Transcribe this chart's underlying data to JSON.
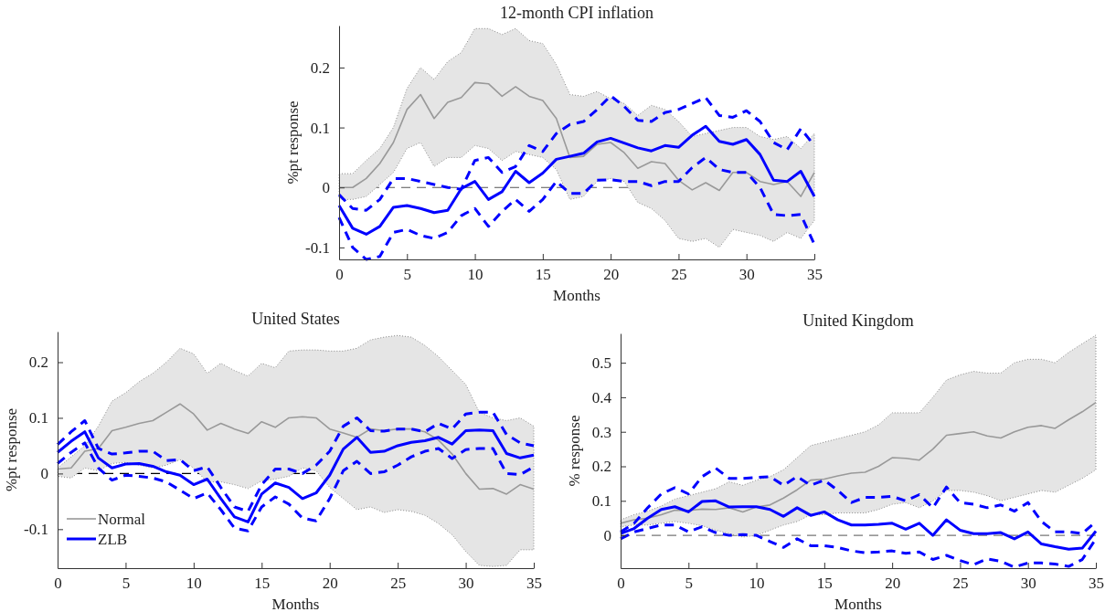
{
  "chart_data": [
    {
      "type": "line",
      "title": "12-month CPI inflation",
      "xlabel": "Months",
      "ylabel": "%pt response",
      "x": [
        0,
        1,
        2,
        3,
        4,
        5,
        6,
        7,
        8,
        9,
        10,
        11,
        12,
        13,
        14,
        15,
        16,
        17,
        18,
        19,
        20,
        21,
        22,
        23,
        24,
        25,
        26,
        27,
        28,
        29,
        30,
        31,
        32,
        33,
        34,
        35
      ],
      "xlim": [
        0,
        35
      ],
      "xticks": [
        0,
        5,
        10,
        15,
        20,
        25,
        30,
        35
      ],
      "ylim": [
        -0.12,
        0.27
      ],
      "yticks": [
        -0.1,
        0,
        0.1,
        0.2
      ],
      "series": [
        {
          "color": "#999999",
          "values": [
            0,
            0,
            0.015,
            0.04,
            0.075,
            0.13,
            0.155,
            0.115,
            0.142,
            0.15,
            0.175,
            0.173,
            0.152,
            0.168,
            0.152,
            0.145,
            0.115,
            0.05,
            0.052,
            0.072,
            0.075,
            0.058,
            0.032,
            0.043,
            0.04,
            0.012,
            -0.004,
            0.008,
            -0.005,
            0.025,
            0.025,
            0.01,
            0.005,
            0.01,
            -0.015,
            0.025
          ],
          "lower": [
            -0.02,
            -0.02,
            -0.015,
            0.005,
            0.025,
            0.065,
            0.075,
            0.035,
            0.05,
            0.05,
            0.07,
            0.065,
            0.045,
            0.06,
            0.055,
            0.05,
            0.03,
            -0.02,
            -0.015,
            0.01,
            0.015,
            0.01,
            -0.025,
            -0.035,
            -0.055,
            -0.085,
            -0.09,
            -0.085,
            -0.1,
            -0.07,
            -0.075,
            -0.08,
            -0.09,
            -0.075,
            -0.085,
            -0.055
          ],
          "upper": [
            0.023,
            0.023,
            0.045,
            0.065,
            0.1,
            0.165,
            0.2,
            0.18,
            0.21,
            0.225,
            0.265,
            0.265,
            0.255,
            0.265,
            0.245,
            0.24,
            0.205,
            0.155,
            0.152,
            0.16,
            0.148,
            0.14,
            0.12,
            0.137,
            0.13,
            0.11,
            0.085,
            0.09,
            0.095,
            0.1,
            0.1,
            0.085,
            0.08,
            0.085,
            0.065,
            0.09
          ]
        },
        {
          "color": "#0000ff",
          "values": [
            -0.03,
            -0.068,
            -0.078,
            -0.065,
            -0.033,
            -0.03,
            -0.035,
            -0.042,
            -0.038,
            -0.002,
            0.01,
            -0.02,
            -0.007,
            0.027,
            0.008,
            0.024,
            0.047,
            0.052,
            0.057,
            0.076,
            0.082,
            0.074,
            0.066,
            0.061,
            0.07,
            0.067,
            0.087,
            0.102,
            0.077,
            0.072,
            0.08,
            0.055,
            0.012,
            0.01,
            0.027,
            -0.015
          ]
        },
        {
          "color": "#0000ff",
          "line_style": "dashed",
          "values": [
            -0.012,
            -0.035,
            -0.038,
            -0.02,
            0.015,
            0.015,
            0.01,
            0.005,
            0,
            -0.003,
            0.045,
            0.05,
            0.025,
            0.035,
            0.07,
            0.06,
            0.09,
            0.105,
            0.11,
            0.13,
            0.153,
            0.135,
            0.112,
            0.11,
            0.125,
            0.13,
            0.14,
            0.15,
            0.12,
            0.117,
            0.128,
            0.11,
            0.075,
            0.063,
            0.098,
            0.07
          ]
        },
        {
          "color": "#0000ff",
          "line_style": "dashed",
          "values": [
            -0.05,
            -0.1,
            -0.12,
            -0.115,
            -0.075,
            -0.07,
            -0.08,
            -0.085,
            -0.075,
            -0.047,
            -0.035,
            -0.065,
            -0.04,
            -0.02,
            -0.04,
            -0.02,
            0.01,
            -0.01,
            -0.01,
            0.012,
            0.013,
            0.01,
            0.01,
            0.003,
            0.01,
            0.01,
            0.033,
            0.05,
            0.03,
            0.025,
            0.025,
            0,
            -0.045,
            -0.047,
            -0.045,
            -0.095
          ]
        }
      ],
      "ref_lines": [
        {
          "axis": "y",
          "value": 0,
          "color": "#555555",
          "line_style": "dashed"
        }
      ]
    },
    {
      "type": "line",
      "title": "United States",
      "xlabel": "Months",
      "ylabel": "%pt response",
      "x": [
        0,
        1,
        2,
        3,
        4,
        5,
        6,
        7,
        8,
        9,
        10,
        11,
        12,
        13,
        14,
        15,
        16,
        17,
        18,
        19,
        20,
        21,
        22,
        23,
        24,
        25,
        26,
        27,
        28,
        29,
        30,
        31,
        32,
        33,
        34,
        35
      ],
      "xlim": [
        0,
        35
      ],
      "xticks": [
        0,
        5,
        10,
        15,
        20,
        25,
        30,
        35
      ],
      "ylim": [
        -0.17,
        0.255
      ],
      "yticks": [
        -0.1,
        0,
        0.1,
        0.2
      ],
      "legend": "bottom left",
      "series": [
        {
          "name": "Normal",
          "color": "#999999",
          "values": [
            0.008,
            0.01,
            0.04,
            0.045,
            0.077,
            0.083,
            0.09,
            0.095,
            0.11,
            0.125,
            0.107,
            0.078,
            0.09,
            0.08,
            0.072,
            0.093,
            0.083,
            0.1,
            0.102,
            0.1,
            0.08,
            0.073,
            0.065,
            0.08,
            0.077,
            0.08,
            0.08,
            0.075,
            0.06,
            0.035,
            0,
            -0.028,
            -0.027,
            -0.037,
            -0.02,
            -0.028
          ],
          "lower": [
            -0.005,
            -0.008,
            0.01,
            0.005,
            0.018,
            0.02,
            0.015,
            0.01,
            0.015,
            0.025,
            0.01,
            -0.015,
            -0.015,
            -0.02,
            -0.027,
            -0.013,
            -0.01,
            -0.005,
            0.01,
            0.005,
            -0.025,
            -0.045,
            -0.065,
            -0.06,
            -0.07,
            -0.065,
            -0.068,
            -0.075,
            -0.09,
            -0.11,
            -0.14,
            -0.165,
            -0.167,
            -0.165,
            -0.137,
            -0.137
          ],
          "upper": [
            0.01,
            0.03,
            0.05,
            0.085,
            0.13,
            0.145,
            0.165,
            0.18,
            0.2,
            0.225,
            0.215,
            0.18,
            0.198,
            0.185,
            0.175,
            0.198,
            0.19,
            0.22,
            0.222,
            0.222,
            0.22,
            0.22,
            0.225,
            0.24,
            0.245,
            0.248,
            0.245,
            0.23,
            0.21,
            0.185,
            0.16,
            0.11,
            0.1,
            0.095,
            0.1,
            0.085
          ]
        },
        {
          "name": "ZLB",
          "color": "#0000ff",
          "values": [
            0.038,
            0.058,
            0.075,
            0.028,
            0.01,
            0.017,
            0.018,
            0.013,
            0.003,
            -0.003,
            -0.02,
            -0.01,
            -0.045,
            -0.078,
            -0.087,
            -0.037,
            -0.017,
            -0.025,
            -0.045,
            -0.035,
            -0.003,
            0.044,
            0.065,
            0.038,
            0.04,
            0.05,
            0.056,
            0.059,
            0.065,
            0.053,
            0.077,
            0.078,
            0.077,
            0.036,
            0.028,
            0.033
          ]
        },
        {
          "color": "#0000ff",
          "line_style": "dashed",
          "values": [
            0.052,
            0.075,
            0.095,
            0.045,
            0.035,
            0.037,
            0.04,
            0.04,
            0.023,
            0.025,
            0.005,
            0.012,
            -0.025,
            -0.06,
            -0.068,
            -0.02,
            0.008,
            0.008,
            0,
            0.015,
            0.04,
            0.085,
            0.1,
            0.077,
            0.076,
            0.08,
            0.08,
            0.075,
            0.09,
            0.08,
            0.107,
            0.11,
            0.11,
            0.07,
            0.055,
            0.05
          ]
        },
        {
          "color": "#0000ff",
          "line_style": "dashed",
          "values": [
            0.018,
            0.038,
            0.055,
            0.01,
            -0.012,
            -0.003,
            -0.005,
            -0.008,
            -0.015,
            -0.03,
            -0.045,
            -0.035,
            -0.065,
            -0.098,
            -0.103,
            -0.06,
            -0.042,
            -0.055,
            -0.08,
            -0.085,
            -0.045,
            0.005,
            0.022,
            0,
            0.003,
            0.015,
            0.03,
            0.04,
            0.045,
            0.027,
            0.043,
            0.045,
            0.045,
            0,
            -0.002,
            0.012
          ]
        }
      ],
      "ref_lines": [
        {
          "axis": "y",
          "value": 0,
          "color": "#000000",
          "line_style": "dashed"
        }
      ]
    },
    {
      "type": "line",
      "title": "United Kingdom",
      "xlabel": "Months",
      "ylabel": "% response",
      "x": [
        0,
        1,
        2,
        3,
        4,
        5,
        6,
        7,
        8,
        9,
        10,
        11,
        12,
        13,
        14,
        15,
        16,
        17,
        18,
        19,
        20,
        21,
        22,
        23,
        24,
        25,
        26,
        27,
        28,
        29,
        30,
        31,
        32,
        33,
        34,
        35
      ],
      "xlim": [
        0,
        35
      ],
      "xticks": [
        0,
        5,
        10,
        15,
        20,
        25,
        30,
        35
      ],
      "ylim": [
        -0.095,
        0.585
      ],
      "yticks": [
        0,
        0.1,
        0.2,
        0.3,
        0.4,
        0.5
      ],
      "series": [
        {
          "color": "#999999",
          "values": [
            0.035,
            0.045,
            0.05,
            0.06,
            0.073,
            0.072,
            0.076,
            0.075,
            0.08,
            0.068,
            0.082,
            0.088,
            0.108,
            0.132,
            0.16,
            0.163,
            0.172,
            0.18,
            0.183,
            0.2,
            0.225,
            0.223,
            0.218,
            0.25,
            0.29,
            0.295,
            0.3,
            0.288,
            0.282,
            0.3,
            0.313,
            0.318,
            0.31,
            0.335,
            0.358,
            0.385
          ],
          "lower": [
            0.025,
            0.03,
            0.03,
            0.035,
            0.04,
            0.035,
            0.028,
            0.015,
            0.005,
            -0.005,
            0,
            0.015,
            0.03,
            0.04,
            0.06,
            0.06,
            0.065,
            0.065,
            0.065,
            0.075,
            0.09,
            0.095,
            0.08,
            0.1,
            0.13,
            0.13,
            0.125,
            0.115,
            0.1,
            0.11,
            0.12,
            0.13,
            0.125,
            0.145,
            0.165,
            0.19
          ],
          "upper": [
            0.045,
            0.06,
            0.07,
            0.085,
            0.105,
            0.115,
            0.125,
            0.135,
            0.155,
            0.145,
            0.16,
            0.17,
            0.19,
            0.225,
            0.26,
            0.27,
            0.28,
            0.29,
            0.3,
            0.32,
            0.355,
            0.355,
            0.355,
            0.4,
            0.45,
            0.465,
            0.475,
            0.47,
            0.47,
            0.5,
            0.51,
            0.51,
            0.5,
            0.53,
            0.555,
            0.58
          ]
        },
        {
          "color": "#0000ff",
          "values": [
            0.005,
            0.02,
            0.05,
            0.075,
            0.083,
            0.068,
            0.098,
            0.1,
            0.082,
            0.083,
            0.083,
            0.075,
            0.055,
            0.08,
            0.058,
            0.068,
            0.045,
            0.03,
            0.03,
            0.032,
            0.035,
            0.018,
            0.035,
            0,
            0.045,
            0.015,
            0.005,
            0.005,
            0.008,
            -0.01,
            0.01,
            -0.025,
            -0.033,
            -0.04,
            -0.037,
            0.012
          ]
        },
        {
          "color": "#0000ff",
          "line_style": "dashed",
          "values": [
            0.01,
            0.035,
            0.08,
            0.12,
            0.138,
            0.12,
            0.17,
            0.195,
            0.165,
            0.165,
            0.168,
            0.17,
            0.145,
            0.17,
            0.145,
            0.16,
            0.13,
            0.095,
            0.11,
            0.11,
            0.113,
            0.1,
            0.118,
            0.08,
            0.14,
            0.095,
            0.09,
            0.08,
            0.088,
            0.07,
            0.095,
            0.04,
            0.01,
            0.01,
            0.005,
            0.04
          ]
        },
        {
          "color": "#0000ff",
          "line_style": "dashed",
          "values": [
            -0.01,
            0.01,
            0.02,
            0.03,
            0.03,
            0.01,
            0.025,
            0.008,
            0,
            0.002,
            0,
            -0.018,
            -0.035,
            -0.01,
            -0.03,
            -0.03,
            -0.035,
            -0.045,
            -0.05,
            -0.048,
            -0.045,
            -0.052,
            -0.048,
            -0.07,
            -0.058,
            -0.073,
            -0.085,
            -0.068,
            -0.075,
            -0.092,
            -0.08,
            -0.08,
            -0.083,
            -0.09,
            -0.07,
            -0.01
          ]
        }
      ],
      "ref_lines": [
        {
          "axis": "y",
          "value": 0,
          "color": "#777777",
          "line_style": "dashed"
        }
      ]
    }
  ]
}
